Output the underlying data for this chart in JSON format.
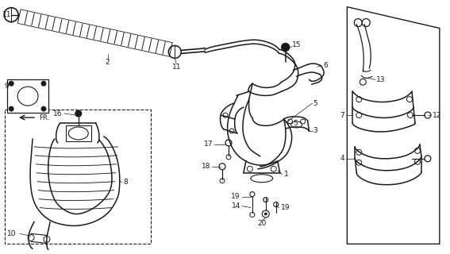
{
  "bg_color": "#ffffff",
  "line_color": "#1a1a1a",
  "fig_width": 5.67,
  "fig_height": 3.2,
  "dpi": 100,
  "label_fs": 6.5,
  "lw_main": 1.1,
  "lw_thin": 0.7
}
